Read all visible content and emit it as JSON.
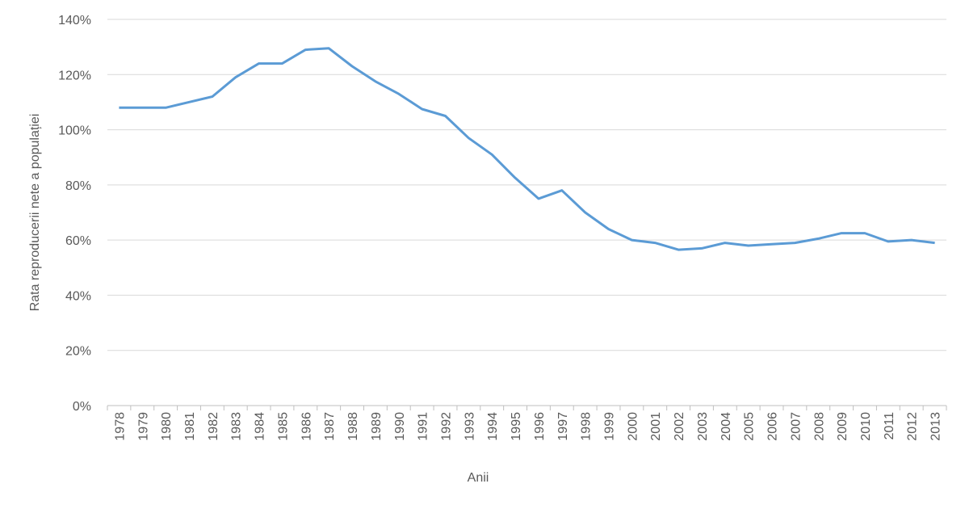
{
  "chart_data": {
    "type": "line",
    "y_label": "Rata reproducerii nete a populației",
    "x_label": "Anii",
    "categories": [
      "1978",
      "1979",
      "1980",
      "1981",
      "1982",
      "1983",
      "1984",
      "1985",
      "1986",
      "1987",
      "1988",
      "1989",
      "1990",
      "1991",
      "1992",
      "1993",
      "1994",
      "1995",
      "1996",
      "1997",
      "1998",
      "1999",
      "2000",
      "2001",
      "2002",
      "2003",
      "2004",
      "2005",
      "2006",
      "2007",
      "2008",
      "2009",
      "2010",
      "2011",
      "2012",
      "2013"
    ],
    "series": [
      {
        "color": "#5b9bd5",
        "values": [
          108,
          108,
          108,
          110,
          112,
          119,
          124,
          124,
          129,
          129.5,
          123,
          117.5,
          113,
          107.5,
          105,
          97,
          91,
          82.5,
          75,
          78,
          70,
          64,
          60,
          59,
          56.5,
          57,
          59,
          58,
          58.5,
          59,
          60.5,
          62.5,
          62.5,
          59.5,
          60,
          59
        ]
      }
    ],
    "ylim": [
      0,
      140
    ],
    "yticks": [
      {
        "value": 0,
        "label": "0%"
      },
      {
        "value": 20,
        "label": "20%"
      },
      {
        "value": 40,
        "label": "40%"
      },
      {
        "value": 60,
        "label": "60%"
      },
      {
        "value": 80,
        "label": "80%"
      },
      {
        "value": 100,
        "label": "100%"
      },
      {
        "value": 120,
        "label": "120%"
      },
      {
        "value": 140,
        "label": "140%"
      }
    ],
    "grid": true
  }
}
